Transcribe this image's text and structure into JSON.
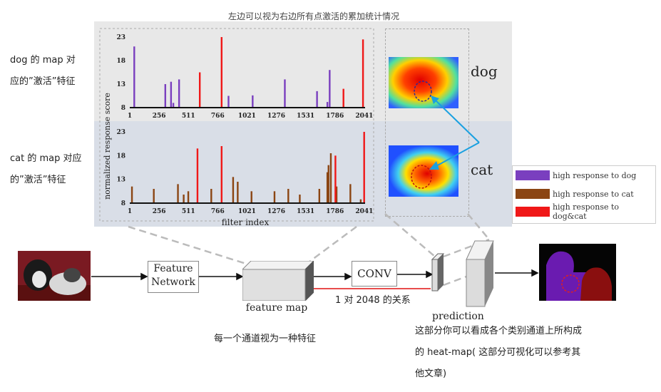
{
  "top_caption": "左边可以视为右边所有点激活的累加统计情况",
  "left_notes": {
    "dog_line1": "dog 的 map 对",
    "dog_line2": "应的”激活”特征",
    "cat_line1": "cat 的 map 对应",
    "cat_line2": "的”激活”特征"
  },
  "chart_data": [
    {
      "type": "bar",
      "title": "",
      "xlabel": "",
      "ylabel": "normalized response score",
      "ylim": [
        8,
        23
      ],
      "yticks": [
        "23",
        "18",
        "13",
        "8"
      ],
      "xticks": [
        "1",
        "256",
        "511",
        "766",
        "1021",
        "1276",
        "1531",
        "1786",
        "2041"
      ],
      "xrange": [
        1,
        2048
      ],
      "series": [
        {
          "name": "high response to dog",
          "color": "#7a3fbf",
          "x": [
            40,
            310,
            360,
            380,
            430,
            860,
            1070,
            1350,
            1630,
            1720,
            1740
          ],
          "values": [
            21,
            13,
            13.5,
            9,
            14,
            10.5,
            10.6,
            14,
            11.5,
            9.2,
            16
          ]
        },
        {
          "name": "high response to dog&cat",
          "color": "#f01818",
          "x": [
            610,
            800,
            1860,
            2030
          ],
          "values": [
            15.5,
            23,
            12,
            22.5
          ]
        }
      ]
    },
    {
      "type": "bar",
      "title": "",
      "xlabel": "filter index",
      "ylabel": "",
      "ylim": [
        8,
        23
      ],
      "yticks": [
        "23",
        "18",
        "13",
        "8"
      ],
      "xticks": [
        "1",
        "256",
        "511",
        "766",
        "1021",
        "1276",
        "1531",
        "1786",
        "2041"
      ],
      "xrange": [
        1,
        2048
      ],
      "series": [
        {
          "name": "high response to cat",
          "color": "#8b4513",
          "x": [
            20,
            210,
            420,
            470,
            510,
            710,
            900,
            940,
            1060,
            1260,
            1380,
            1480,
            1650,
            1720,
            1730,
            1750,
            1800,
            1920,
            2010
          ],
          "values": [
            11.5,
            11,
            12,
            9.8,
            10.5,
            11,
            13.5,
            12.5,
            10.5,
            10.5,
            11,
            9.8,
            11,
            14.5,
            16,
            18.5,
            11.5,
            12,
            8.8
          ]
        },
        {
          "name": "high response to dog&cat",
          "color": "#f01818",
          "x": [
            590,
            800,
            1790,
            2040
          ],
          "values": [
            19.5,
            20,
            18,
            23
          ]
        }
      ]
    }
  ],
  "heatmap_labels": {
    "dog": "dog",
    "cat": "cat"
  },
  "legend": [
    {
      "label": "high response to dog",
      "color": "#7a3fbf"
    },
    {
      "label": "high response to cat",
      "color": "#8b4513"
    },
    {
      "label": "high response to dog&cat",
      "color": "#f01818"
    }
  ],
  "pipeline": {
    "feature_network": "Feature\nNetwork",
    "feature_map": "feature map",
    "conv": "CONV",
    "prediction": "prediction",
    "relation": "1 对 2048 的关系"
  },
  "bottom_notes": {
    "channel_note": "每一个通道视为一种特征",
    "heatmap_line1": "这部分你可以看成各个类别通道上所构成",
    "heatmap_line2": "的 heat-map( 这部分可视化可以参考其",
    "heatmap_line3": "他文章)"
  }
}
